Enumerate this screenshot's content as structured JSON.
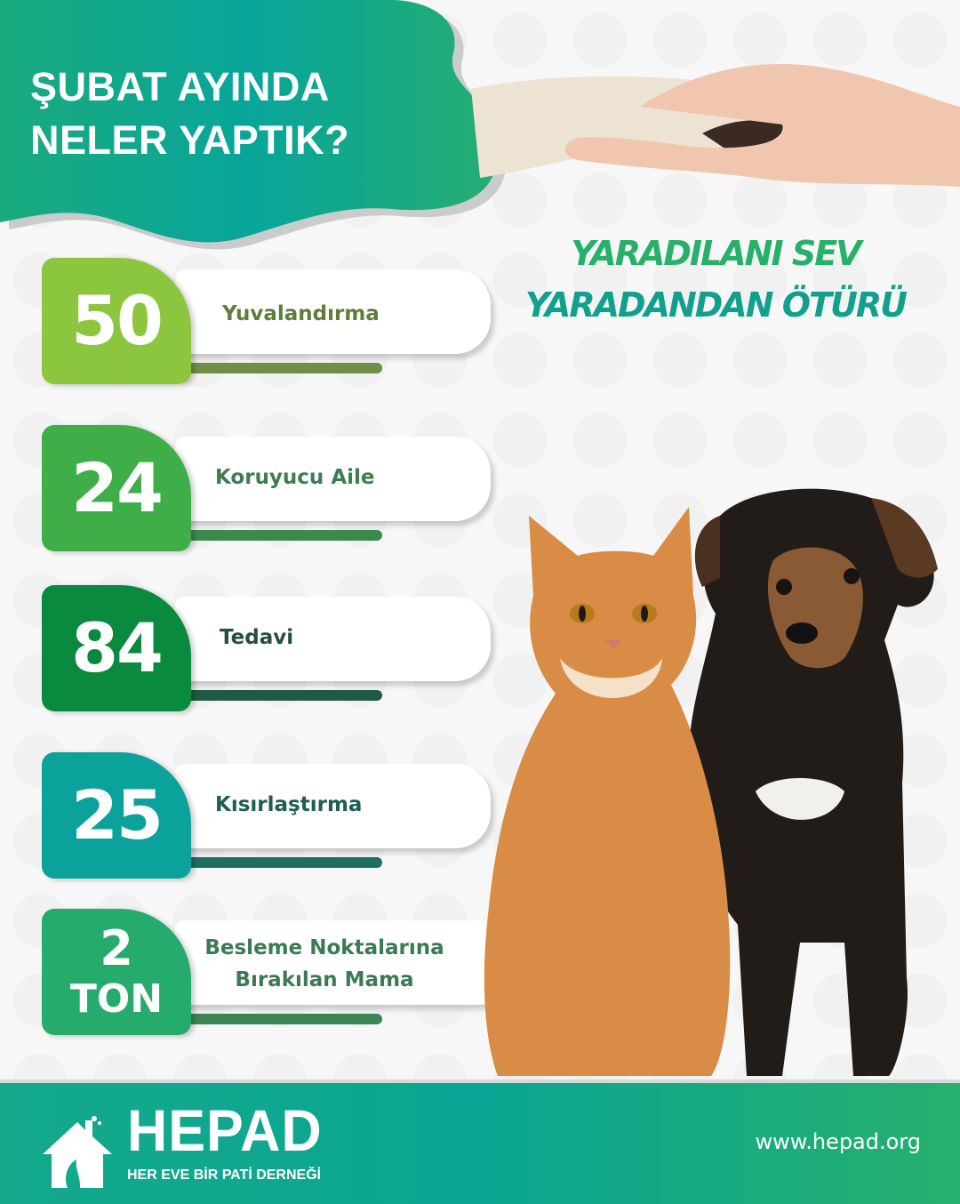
{
  "header": {
    "title_line1": "ŞUBAT AYINDA",
    "title_line2": "NELER YAPTIK?"
  },
  "slogan": {
    "line1": "YARADILANI SEV",
    "line2": "YARADANDAN ÖTÜRÜ"
  },
  "stats": [
    {
      "value": "50",
      "label": "Yuvalandırma",
      "box_color": "#8cc63f",
      "bar_color": "#6e8f45",
      "label_color": "#5e7d3a"
    },
    {
      "value": "24",
      "label": "Koruyucu Aile",
      "box_color": "#3fae49",
      "bar_color": "#3a8a4e",
      "label_color": "#3e7d52"
    },
    {
      "value": "84",
      "label": "Tedavi",
      "box_color": "#0a8a3e",
      "bar_color": "#1f5a45",
      "label_color": "#24503f"
    },
    {
      "value": "25",
      "label": "Kısırlaştırma",
      "box_color": "#0aa29a",
      "bar_color": "#1e6f62",
      "label_color": "#1f5e55"
    },
    {
      "value": "2",
      "unit": "TON",
      "label_line1": "Besleme Noktalarına",
      "label_line2": "Bırakılan Mama",
      "box_color": "#25ab6b",
      "bar_color": "#3b8555",
      "label_color": "#3a7a55"
    }
  ],
  "footer": {
    "brand": "HEPAD",
    "tagline": "HER EVE BİR PATİ DERNEĞİ",
    "url": "www.hepad.org"
  },
  "icons": {
    "logo": "house-with-pets-icon"
  }
}
